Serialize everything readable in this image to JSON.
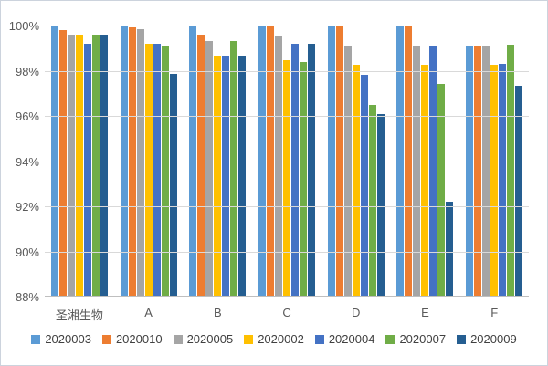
{
  "figure": {
    "background": "#FFFFFF",
    "border_color": "#CCD3DD",
    "axis_text_color": "#595959",
    "gridline_color": "#D9D9D9",
    "legend_text_color": "#404040"
  },
  "chart_data": {
    "type": "bar",
    "title": "",
    "xlabel": "",
    "ylabel": "",
    "categories": [
      "圣湘生物",
      "A",
      "B",
      "C",
      "D",
      "E",
      "F"
    ],
    "series": [
      {
        "name": "2020003",
        "color": "#5B9BD5",
        "values": [
          100,
          100,
          100,
          100,
          100,
          100,
          99.1
        ]
      },
      {
        "name": "2020010",
        "color": "#ED7D31",
        "values": [
          99.8,
          99.9,
          99.6,
          100,
          100,
          100,
          99.1
        ]
      },
      {
        "name": "2020005",
        "color": "#A5A5A5",
        "values": [
          99.6,
          99.85,
          99.3,
          99.55,
          99.1,
          99.1,
          99.1
        ]
      },
      {
        "name": "2020002",
        "color": "#FFC000",
        "values": [
          99.6,
          99.2,
          98.65,
          98.45,
          98.25,
          98.25,
          98.25
        ]
      },
      {
        "name": "2020004",
        "color": "#4472C4",
        "values": [
          99.2,
          99.2,
          98.65,
          99.2,
          97.8,
          99.1,
          98.3
        ]
      },
      {
        "name": "2020007",
        "color": "#70AD47",
        "values": [
          99.6,
          99.1,
          99.3,
          98.4,
          96.5,
          97.4,
          99.15
        ]
      },
      {
        "name": "2020009",
        "color": "#255E91",
        "values": [
          99.6,
          97.85,
          98.65,
          99.2,
          96.1,
          92.2,
          97.35
        ]
      }
    ],
    "ylim": [
      88,
      100
    ],
    "ytick_labels": [
      "100%",
      "98%",
      "96%",
      "94%",
      "92%",
      "90%",
      "88%"
    ],
    "ytick_values": [
      100,
      98,
      96,
      94,
      92,
      90,
      88
    ],
    "grid": true,
    "legend_position": "bottom"
  }
}
